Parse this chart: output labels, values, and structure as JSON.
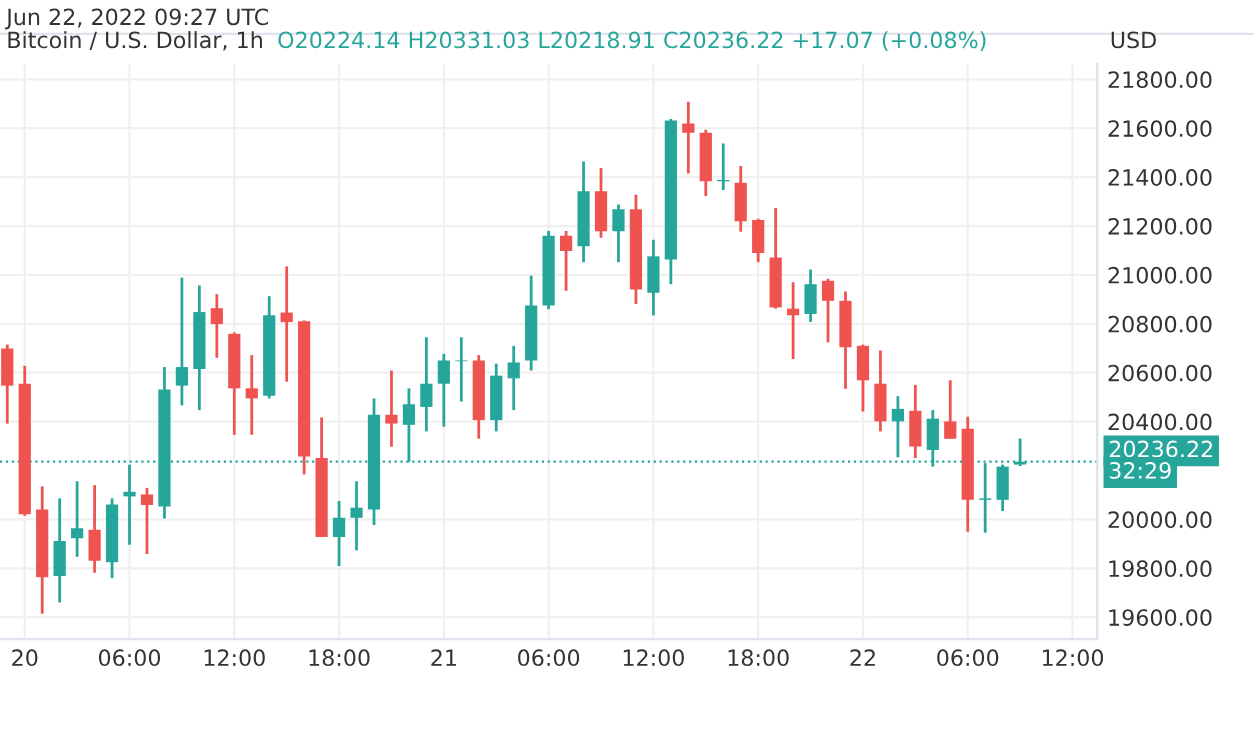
{
  "chart_data": {
    "type": "candlestick",
    "title": "Bitcoin / U.S. Dollar, 1h",
    "subtitle": "O20224.14 H20331.03 L20218.91 C20236.22 +17.07 (+0.08%)",
    "ylabel": "USD",
    "annotations": [
      "Jun 22, 2022 09:27 UTC",
      "32:29"
    ],
    "x": [
      "2022-06-19T23:00",
      "2022-06-20T00:00",
      "2022-06-20T01:00",
      "2022-06-20T02:00",
      "2022-06-20T03:00",
      "2022-06-20T04:00",
      "2022-06-20T05:00",
      "2022-06-20T06:00",
      "2022-06-20T07:00",
      "2022-06-20T08:00",
      "2022-06-20T09:00",
      "2022-06-20T10:00",
      "2022-06-20T11:00",
      "2022-06-20T12:00",
      "2022-06-20T13:00",
      "2022-06-20T14:00",
      "2022-06-20T15:00",
      "2022-06-20T16:00",
      "2022-06-20T17:00",
      "2022-06-20T18:00",
      "2022-06-20T19:00",
      "2022-06-20T20:00",
      "2022-06-20T21:00",
      "2022-06-20T22:00",
      "2022-06-20T23:00",
      "2022-06-21T00:00",
      "2022-06-21T01:00",
      "2022-06-21T02:00",
      "2022-06-21T03:00",
      "2022-06-21T04:00",
      "2022-06-21T05:00",
      "2022-06-21T06:00",
      "2022-06-21T07:00",
      "2022-06-21T08:00",
      "2022-06-21T09:00",
      "2022-06-21T10:00",
      "2022-06-21T11:00",
      "2022-06-21T12:00",
      "2022-06-21T13:00",
      "2022-06-21T14:00",
      "2022-06-21T15:00",
      "2022-06-21T16:00",
      "2022-06-21T17:00",
      "2022-06-21T18:00",
      "2022-06-21T19:00",
      "2022-06-21T20:00",
      "2022-06-21T21:00",
      "2022-06-21T22:00",
      "2022-06-21T23:00",
      "2022-06-22T00:00",
      "2022-06-22T01:00",
      "2022-06-22T02:00",
      "2022-06-22T03:00",
      "2022-06-22T04:00",
      "2022-06-22T05:00",
      "2022-06-22T06:00",
      "2022-06-22T07:00",
      "2022-06-22T08:00",
      "2022-06-22T09:00"
    ],
    "ohlc": [
      [
        20699,
        20715,
        20392,
        20547
      ],
      [
        20555,
        20628,
        20015,
        20021
      ],
      [
        20040,
        20135,
        19614,
        19763
      ],
      [
        19768,
        20086,
        19660,
        19912
      ],
      [
        19923,
        20156,
        19847,
        19964
      ],
      [
        19958,
        20140,
        19782,
        19831
      ],
      [
        19825,
        20086,
        19760,
        20061
      ],
      [
        20094,
        20224,
        19896,
        20113
      ],
      [
        20102,
        20129,
        19858,
        20059
      ],
      [
        20053,
        20623,
        20004,
        20531
      ],
      [
        20547,
        20989,
        20466,
        20623
      ],
      [
        20615,
        20957,
        20447,
        20848
      ],
      [
        20864,
        20921,
        20661,
        20799
      ],
      [
        20759,
        20765,
        20346,
        20536
      ],
      [
        20536,
        20672,
        20346,
        20495
      ],
      [
        20506,
        20913,
        20495,
        20835
      ],
      [
        20846,
        21035,
        20563,
        20807
      ],
      [
        20810,
        20814,
        20184,
        20257
      ],
      [
        20251,
        20417,
        19928,
        19928
      ],
      [
        19928,
        20075,
        19809,
        20007
      ],
      [
        20007,
        20156,
        19874,
        20048
      ],
      [
        20040,
        20495,
        19977,
        20428
      ],
      [
        20428,
        20609,
        20297,
        20392
      ],
      [
        20387,
        20536,
        20235,
        20471
      ],
      [
        20460,
        20745,
        20360,
        20555
      ],
      [
        20555,
        20677,
        20379,
        20650
      ],
      [
        20647,
        20745,
        20482,
        20650
      ],
      [
        20650,
        20672,
        20330,
        20406
      ],
      [
        20406,
        20637,
        20360,
        20588
      ],
      [
        20577,
        20710,
        20447,
        20642
      ],
      [
        20650,
        20997,
        20609,
        20875
      ],
      [
        20875,
        21180,
        20860,
        21160
      ],
      [
        21160,
        21180,
        20935,
        21098
      ],
      [
        21117,
        21464,
        21052,
        21342
      ],
      [
        21342,
        21437,
        21152,
        21179
      ],
      [
        21179,
        21288,
        21052,
        21269
      ],
      [
        21269,
        21328,
        20881,
        20940
      ],
      [
        20927,
        21144,
        20835,
        21076
      ],
      [
        21063,
        21638,
        20962,
        21632
      ],
      [
        21619,
        21708,
        21415,
        21581
      ],
      [
        21581,
        21594,
        21323,
        21383
      ],
      [
        21383,
        21537,
        21347,
        21388
      ],
      [
        21377,
        21445,
        21177,
        21220
      ],
      [
        21225,
        21230,
        21052,
        21090
      ],
      [
        21071,
        21274,
        20862,
        20867
      ],
      [
        20862,
        20970,
        20656,
        20835
      ],
      [
        20840,
        21022,
        20808,
        20962
      ],
      [
        20976,
        20984,
        20724,
        20894
      ],
      [
        20894,
        20932,
        20534,
        20704
      ],
      [
        20710,
        20715,
        20441,
        20569
      ],
      [
        20555,
        20691,
        20360,
        20401
      ],
      [
        20401,
        20504,
        20254,
        20452
      ],
      [
        20444,
        20550,
        20251,
        20298
      ],
      [
        20284,
        20447,
        20216,
        20412
      ],
      [
        20401,
        20569,
        20330,
        20330
      ],
      [
        20371,
        20420,
        19950,
        20080
      ],
      [
        20080,
        20230,
        19945,
        20086
      ],
      [
        20080,
        20224,
        20034,
        20216
      ],
      [
        20224.14,
        20331.03,
        20218.91,
        20236.22
      ]
    ],
    "colors": [
      "#ef5350",
      "#ef5350",
      "#ef5350",
      "#26a69a",
      "#26a69a",
      "#ef5350",
      "#26a69a",
      "#26a69a",
      "#ef5350",
      "#26a69a",
      "#26a69a",
      "#26a69a",
      "#ef5350",
      "#ef5350",
      "#ef5350",
      "#26a69a",
      "#ef5350",
      "#ef5350",
      "#ef5350",
      "#26a69a",
      "#26a69a",
      "#26a69a",
      "#ef5350",
      "#26a69a",
      "#26a69a",
      "#26a69a",
      "#26a69a",
      "#ef5350",
      "#26a69a",
      "#26a69a",
      "#26a69a",
      "#26a69a",
      "#ef5350",
      "#26a69a",
      "#ef5350",
      "#26a69a",
      "#ef5350",
      "#26a69a",
      "#26a69a",
      "#ef5350",
      "#ef5350",
      "#26a69a",
      "#ef5350",
      "#ef5350",
      "#ef5350",
      "#ef5350",
      "#26a69a",
      "#ef5350",
      "#ef5350",
      "#ef5350",
      "#ef5350",
      "#26a69a",
      "#ef5350",
      "#26a69a",
      "#ef5350",
      "#ef5350",
      "#26a69a",
      "#26a69a",
      "#26a69a"
    ],
    "xlim": [
      "2022-06-19T22:35",
      "2022-06-22T13:25"
    ],
    "xticks": [
      {
        "value": "2022-06-20T00:00",
        "label": "20"
      },
      {
        "value": "2022-06-20T06:00",
        "label": "06:00"
      },
      {
        "value": "2022-06-20T12:00",
        "label": "12:00"
      },
      {
        "value": "2022-06-20T18:00",
        "label": "18:00"
      },
      {
        "value": "2022-06-21T00:00",
        "label": "21"
      },
      {
        "value": "2022-06-21T06:00",
        "label": "06:00"
      },
      {
        "value": "2022-06-21T12:00",
        "label": "12:00"
      },
      {
        "value": "2022-06-21T18:00",
        "label": "18:00"
      },
      {
        "value": "2022-06-22T00:00",
        "label": "22"
      },
      {
        "value": "2022-06-22T06:00",
        "label": "06:00"
      },
      {
        "value": "2022-06-22T12:00",
        "label": "12:00"
      }
    ],
    "ylim": [
      19510,
      21863
    ],
    "yticks": [
      {
        "value": 19600,
        "label": "19600.00"
      },
      {
        "value": 19800,
        "label": "19800.00"
      },
      {
        "value": 20000,
        "label": "20000.00"
      },
      {
        "value": 20400,
        "label": "20400.00"
      },
      {
        "value": 20600,
        "label": "20600.00"
      },
      {
        "value": 20800,
        "label": "20800.00"
      },
      {
        "value": 21000,
        "label": "21000.00"
      },
      {
        "value": 21200,
        "label": "21200.00"
      },
      {
        "value": 21400,
        "label": "21400.00"
      },
      {
        "value": 21600,
        "label": "21600.00"
      },
      {
        "value": 21800,
        "label": "21800.00"
      }
    ],
    "ref_lines": [
      {
        "axis": "y",
        "value": 20236.22,
        "label": "20236.22",
        "color": "#26a69a",
        "line_style": "dotted"
      }
    ],
    "grid": true,
    "legend": false
  }
}
